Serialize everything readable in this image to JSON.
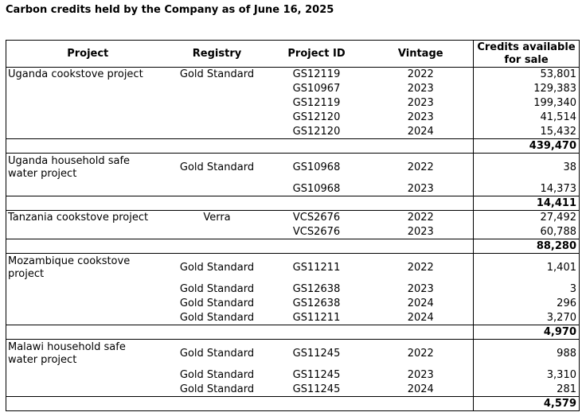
{
  "title": "Carbon credits held by the Company as of June 16, 2025",
  "table": {
    "columns": [
      "Project",
      "Registry",
      "Project ID",
      "Vintage"
    ],
    "credits_header": [
      "Credits available",
      "for sale"
    ],
    "sections": [
      {
        "project": "Uganda cookstove project",
        "rows": [
          {
            "registry": "Gold Standard",
            "project_id": "GS12119",
            "vintage": "2022",
            "credits": "53,801"
          },
          {
            "registry": "",
            "project_id": "GS10967",
            "vintage": "2023",
            "credits": "129,383"
          },
          {
            "registry": "",
            "project_id": "GS12119",
            "vintage": "2023",
            "credits": "199,340"
          },
          {
            "registry": "",
            "project_id": "GS12120",
            "vintage": "2023",
            "credits": "41,514"
          },
          {
            "registry": "",
            "project_id": "GS12120",
            "vintage": "2024",
            "credits": "15,432"
          }
        ],
        "subtotal": "439,470"
      },
      {
        "project": "Uganda household safe water project",
        "rows": [
          {
            "registry": "Gold Standard",
            "project_id": "GS10968",
            "vintage": "2022",
            "credits": "38"
          },
          {
            "registry": "",
            "project_id": "GS10968",
            "vintage": "2023",
            "credits": "14,373"
          }
        ],
        "subtotal": "14,411"
      },
      {
        "project": "Tanzania cookstove project",
        "rows": [
          {
            "registry": "Verra",
            "project_id": "VCS2676",
            "vintage": "2022",
            "credits": "27,492"
          },
          {
            "registry": "",
            "project_id": "VCS2676",
            "vintage": "2023",
            "credits": "60,788"
          }
        ],
        "subtotal": "88,280"
      },
      {
        "project": "Mozambique cookstove project",
        "rows": [
          {
            "registry": "Gold Standard",
            "project_id": "GS11211",
            "vintage": "2022",
            "credits": "1,401"
          },
          {
            "registry": "Gold Standard",
            "project_id": "GS12638",
            "vintage": "2023",
            "credits": "3"
          },
          {
            "registry": "Gold Standard",
            "project_id": "GS12638",
            "vintage": "2024",
            "credits": "296"
          },
          {
            "registry": "Gold Standard",
            "project_id": "GS11211",
            "vintage": "2024",
            "credits": "3,270"
          }
        ],
        "subtotal": "4,970"
      },
      {
        "project": "Malawi household safe water project",
        "rows": [
          {
            "registry": "Gold Standard",
            "project_id": "GS11245",
            "vintage": "2022",
            "credits": "988"
          },
          {
            "registry": "Gold Standard",
            "project_id": "GS11245",
            "vintage": "2023",
            "credits": "3,310"
          },
          {
            "registry": "Gold Standard",
            "project_id": "GS11245",
            "vintage": "2024",
            "credits": "281"
          }
        ],
        "subtotal": "4,579"
      }
    ]
  }
}
